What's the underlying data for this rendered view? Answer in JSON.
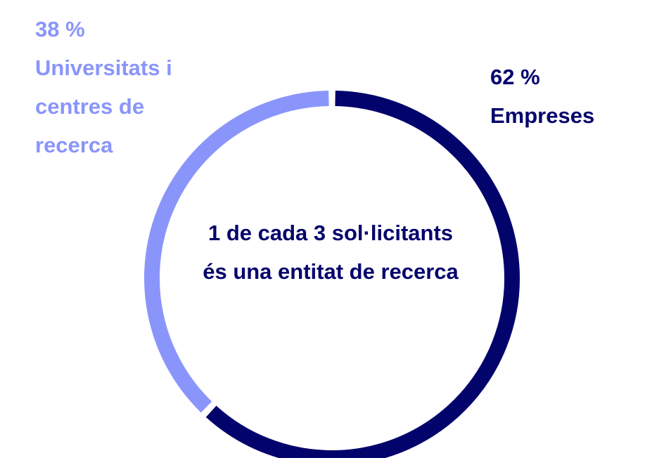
{
  "chart_data": {
    "type": "pie",
    "categories": [
      "Empreses",
      "Universitats i centres de recerca"
    ],
    "values": [
      62,
      38
    ],
    "value_labels": [
      "62 %",
      "38 %"
    ],
    "colors": [
      "#03036c",
      "#8a95fb"
    ],
    "donut": true,
    "annotation": "1 de cada 3 sol·licitants és una entitat de recerca"
  }
}
